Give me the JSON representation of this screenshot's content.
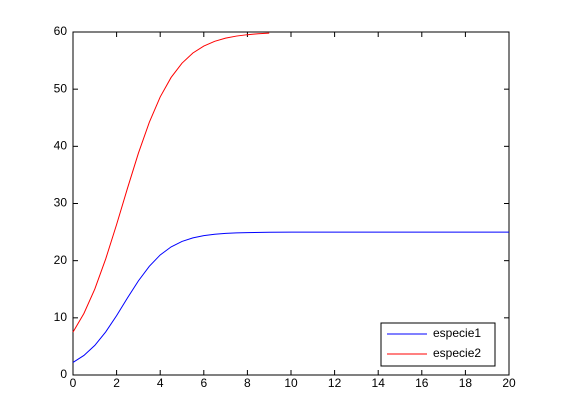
{
  "chart_data": {
    "type": "line",
    "series": [
      {
        "name": "especie1",
        "color": "#0000ff",
        "x": [
          0,
          0.5,
          1,
          1.5,
          2,
          2.5,
          3,
          3.5,
          4,
          4.5,
          5,
          5.5,
          6,
          6.5,
          7,
          7.5,
          8,
          9,
          10,
          12,
          14,
          16,
          18,
          20
        ],
        "values": [
          2.2,
          3.42,
          5.18,
          7.53,
          10.39,
          13.49,
          16.47,
          19.02,
          21.0,
          22.41,
          23.36,
          23.98,
          24.37,
          24.62,
          24.77,
          24.86,
          24.91,
          24.97,
          24.99,
          25,
          25,
          25,
          25,
          25
        ]
      },
      {
        "name": "especie2",
        "color": "#ff0000",
        "x": [
          0,
          0.5,
          1,
          1.5,
          2,
          2.5,
          3,
          3.5,
          4,
          4.5,
          5,
          5.5,
          6,
          6.5,
          7,
          7.5,
          8,
          8.5,
          9
        ],
        "values": [
          7.5,
          10.76,
          15.03,
          20.3,
          26.33,
          32.68,
          38.8,
          44.2,
          48.64,
          52.05,
          54.55,
          56.33,
          57.54,
          58.37,
          58.92,
          59.29,
          59.53,
          59.7,
          59.8
        ]
      }
    ],
    "xlim": [
      0,
      20
    ],
    "xticks": [
      0,
      2,
      4,
      6,
      8,
      10,
      12,
      14,
      16,
      18,
      20
    ],
    "ylim": [
      0,
      60
    ],
    "yticks": [
      0,
      10,
      20,
      30,
      40,
      50,
      60
    ],
    "grid": false,
    "legend": "bottom-right"
  }
}
